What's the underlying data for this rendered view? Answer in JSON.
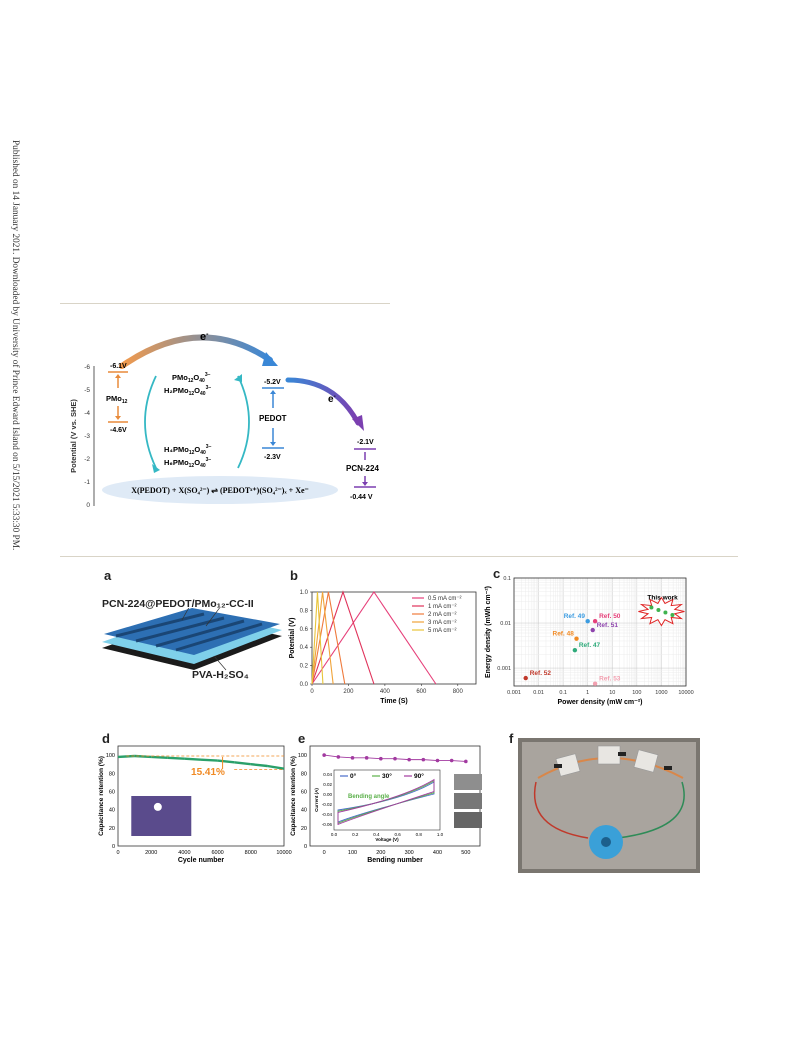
{
  "sidebar_text": "Published on 14 January 2021. Downloaded by University of Prince Edward Island on 5/15/2021 5:33:30 PM.",
  "scheme": {
    "y_axis_label": "Potential (V vs. SHE)",
    "y_ticks": [
      "-6",
      "-5",
      "-4",
      "-3",
      "-2",
      "-1",
      "0"
    ],
    "electron": "e",
    "electron_sup": "-",
    "pmo_top": "-6.1V",
    "pmo_bottom": "-4.6V",
    "pmo_label": "PMo",
    "pmo_sub": "12",
    "pmo_species": [
      {
        "a": "PMo",
        "b": "12",
        "c": "O",
        "d": "40",
        "sup": "3−"
      },
      {
        "a": "H₂PMo",
        "b": "12",
        "c": "O",
        "d": "40",
        "sup": "3−"
      },
      {
        "a": "H₄PMo",
        "b": "12",
        "c": "O",
        "d": "40",
        "sup": "3−"
      },
      {
        "a": "H₆PMo",
        "b": "12",
        "c": "O",
        "d": "40",
        "sup": "3−"
      }
    ],
    "pedot_top": "-5.2V",
    "pedot_bottom": "-2.3V",
    "pedot_label": "PEDOT",
    "pcn_top": "-2.1V",
    "pcn_label": "PCN-224",
    "pcn_bottom": "-0.44 V",
    "equation": "X(PEDOT) + X(SO₄²⁻) ⇌ (PEDOTˣ⁺)(SO₄²⁻)ₓ + Xe⁻"
  },
  "panels": {
    "a": {
      "label": "a",
      "title": "PCN-224@PEDOT/PMo₁₂-CC-II",
      "electrolyte": "PVA-H₂SO₄"
    },
    "b": {
      "label": "b",
      "chart_data": {
        "type": "line",
        "xlabel": "Time (S)",
        "ylabel": "Potential (V)",
        "xlim": [
          0,
          900
        ],
        "ylim": [
          0,
          1.0
        ],
        "x_ticks": [
          0,
          200,
          400,
          600,
          800
        ],
        "y_ticks": [
          0.0,
          0.2,
          0.4,
          0.6,
          0.8,
          1.0
        ],
        "series": [
          {
            "name": "0.5 mA cm⁻²",
            "color": "#e6407a",
            "x": [
              0,
              340,
              680
            ],
            "y": [
              0,
              1.0,
              0
            ]
          },
          {
            "name": "1  mA cm⁻²",
            "color": "#e0325a",
            "x": [
              0,
              170,
              340
            ],
            "y": [
              0,
              1.0,
              0
            ]
          },
          {
            "name": "2  mA cm⁻²",
            "color": "#ef7a3c",
            "x": [
              0,
              90,
              180
            ],
            "y": [
              0,
              1.0,
              0
            ]
          },
          {
            "name": "3  mA cm⁻²",
            "color": "#f0a43a",
            "x": [
              0,
              58,
              116
            ],
            "y": [
              0,
              1.0,
              0
            ]
          },
          {
            "name": "5  mA cm⁻²",
            "color": "#e8c43a",
            "x": [
              0,
              30,
              60
            ],
            "y": [
              0,
              1.0,
              0
            ]
          }
        ]
      }
    },
    "c": {
      "label": "c",
      "chart_data": {
        "type": "scatter",
        "xlabel": "Power density (mW cm⁻²)",
        "ylabel": "Energy  density (mWh cm⁻²)",
        "x_scale": "log",
        "y_scale": "log",
        "xlim": [
          0.001,
          10000
        ],
        "ylim": [
          0.0004,
          0.1
        ],
        "x_ticks": [
          "0.001",
          "0.01",
          "0.1",
          "1",
          "10",
          "100",
          "1000",
          "10000"
        ],
        "y_ticks": [
          "0.001",
          "0.01",
          "0.1"
        ],
        "points": [
          {
            "label": "This work",
            "x": 1000,
            "y": 0.018,
            "color": "#3fb34f"
          },
          {
            "label": "Ref. 50",
            "x": 2,
            "y": 0.011,
            "color": "#e6407a"
          },
          {
            "label": "Ref. 49",
            "x": 1.0,
            "y": 0.011,
            "color": "#3b9be0"
          },
          {
            "label": "Ref. 51",
            "x": 1.6,
            "y": 0.007,
            "color": "#8e44ad"
          },
          {
            "label": "Ref. 48",
            "x": 0.35,
            "y": 0.0045,
            "color": "#f08a24"
          },
          {
            "label": "Ref. 47",
            "x": 0.3,
            "y": 0.0025,
            "color": "#2eaa7a"
          },
          {
            "label": "Ref. 52",
            "x": 0.003,
            "y": 0.0006,
            "color": "#c0392b"
          },
          {
            "label": "Ref. 53",
            "x": 2,
            "y": 0.00045,
            "color": "#f2a0b0"
          }
        ]
      }
    },
    "d": {
      "label": "d",
      "chart_data": {
        "type": "line",
        "xlabel": "Cycle number",
        "ylabel": "Capacitance retention (%)",
        "xlim": [
          0,
          10000
        ],
        "ylim": [
          0,
          110
        ],
        "x_ticks": [
          0,
          2000,
          4000,
          6000,
          8000,
          10000
        ],
        "y_ticks": [
          0,
          20,
          40,
          60,
          80,
          100
        ],
        "x": [
          0,
          1000,
          2000,
          3000,
          4000,
          5000,
          6000,
          7000,
          8000,
          9000,
          10000
        ],
        "y": [
          98,
          99,
          98,
          97,
          96,
          95,
          94,
          92,
          90,
          88,
          85
        ],
        "annotation": "15.41%"
      }
    },
    "e": {
      "label": "e",
      "chart_data": {
        "type": "line",
        "xlabel": "Bending number",
        "ylabel": "Capacitance retention (%)",
        "xlim": [
          -50,
          550
        ],
        "ylim": [
          0,
          110
        ],
        "x_ticks": [
          0,
          100,
          200,
          300,
          400,
          500
        ],
        "y_ticks": [
          0,
          20,
          40,
          60,
          80,
          100
        ],
        "x": [
          0,
          50,
          100,
          150,
          200,
          250,
          300,
          350,
          400,
          450,
          500
        ],
        "y": [
          100,
          98,
          97,
          97,
          96,
          96,
          95,
          95,
          94,
          94,
          93
        ],
        "inset": {
          "xlabel": "Voltage (V)",
          "ylabel": "Current (A)",
          "x_ticks": [
            "0.0",
            "0.2",
            "0.4",
            "0.6",
            "0.8",
            "1.0"
          ],
          "y_ticks": [
            "0.04",
            "0.02",
            "0.00",
            "-0.02",
            "-0.04",
            "-0.06"
          ],
          "legend": [
            "0°",
            "30°",
            "90°"
          ],
          "colors": [
            "#4a6cc9",
            "#5bb04a",
            "#a23aa0"
          ],
          "annotation": "Bending angle"
        }
      }
    },
    "f": {
      "label": "f"
    }
  }
}
